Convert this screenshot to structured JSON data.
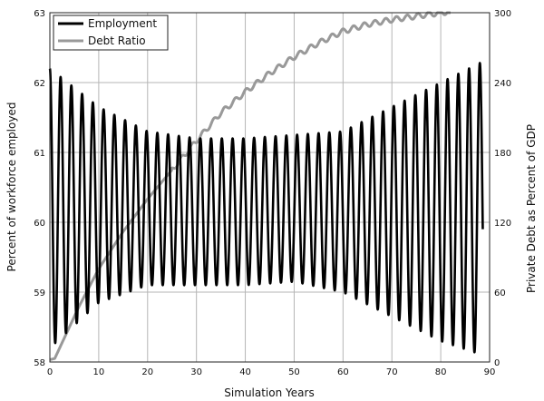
{
  "chart_data": {
    "type": "line",
    "xlabel": "Simulation Years",
    "ylabel_left": "Percent of workforce employed",
    "ylabel_right": "Private Debt as Percent of GDP",
    "xlim": [
      0,
      90
    ],
    "ylim_left": [
      58,
      63
    ],
    "ylim_right": [
      0,
      300
    ],
    "x_ticks": [
      0,
      10,
      20,
      30,
      40,
      50,
      60,
      70,
      80,
      90
    ],
    "y_ticks_left": [
      58,
      59,
      60,
      61,
      62,
      63
    ],
    "y_ticks_right": [
      0,
      60,
      120,
      180,
      240,
      300
    ],
    "grid": true,
    "legend_position": "top-left",
    "series": [
      {
        "name": "Employment",
        "axis": "left",
        "color": "#000000",
        "kind": "oscillation",
        "cycle_years": 2.2,
        "x_start": 0,
        "x_end": 88.6,
        "centre": [
          [
            0,
            60.2
          ],
          [
            10,
            60.25
          ],
          [
            20,
            60.2
          ],
          [
            30,
            60.15
          ],
          [
            40,
            60.15
          ],
          [
            50,
            60.2
          ],
          [
            60,
            60.15
          ],
          [
            70,
            60.15
          ],
          [
            80,
            60.15
          ],
          [
            88.6,
            60.2
          ]
        ],
        "amplitude": [
          [
            0,
            2.0
          ],
          [
            10,
            1.4
          ],
          [
            20,
            1.1
          ],
          [
            30,
            1.05
          ],
          [
            40,
            1.05
          ],
          [
            50,
            1.05
          ],
          [
            60,
            1.15
          ],
          [
            70,
            1.5
          ],
          [
            80,
            1.85
          ],
          [
            88.6,
            2.1
          ]
        ]
      },
      {
        "name": "Debt Ratio",
        "axis": "right",
        "color": "#999999",
        "points": [
          [
            0,
            2
          ],
          [
            1,
            3
          ],
          [
            2,
            12
          ],
          [
            4,
            30
          ],
          [
            6,
            48
          ],
          [
            8,
            64
          ],
          [
            10,
            80
          ],
          [
            15,
            112
          ],
          [
            20,
            140
          ],
          [
            25,
            165
          ],
          [
            30,
            190
          ],
          [
            35,
            214
          ],
          [
            40,
            232
          ],
          [
            45,
            248
          ],
          [
            50,
            262
          ],
          [
            55,
            274
          ],
          [
            60,
            284
          ],
          [
            65,
            290
          ],
          [
            70,
            294
          ],
          [
            75,
            297
          ],
          [
            80,
            300
          ],
          [
            82,
            301
          ]
        ]
      }
    ]
  }
}
